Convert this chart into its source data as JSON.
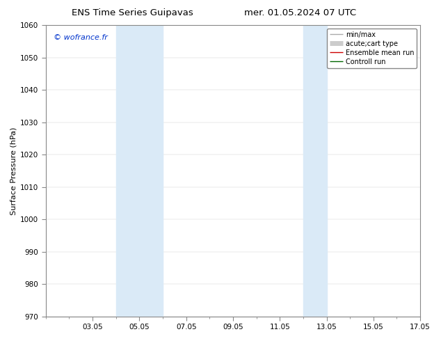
{
  "title_left": "ENS Time Series Guipavas",
  "title_right": "mer. 01.05.2024 07 UTC",
  "ylabel": "Surface Pressure (hPa)",
  "ylim": [
    970,
    1060
  ],
  "yticks": [
    970,
    980,
    990,
    1000,
    1010,
    1020,
    1030,
    1040,
    1050,
    1060
  ],
  "xlim": [
    0,
    16
  ],
  "xtick_labels": [
    "03.05",
    "05.05",
    "07.05",
    "09.05",
    "11.05",
    "13.05",
    "15.05",
    "17.05"
  ],
  "xtick_positions": [
    2,
    4,
    6,
    8,
    10,
    12,
    14,
    16
  ],
  "shaded_bands": [
    {
      "x_start": 3,
      "x_end": 5
    },
    {
      "x_start": 11,
      "x_end": 12
    }
  ],
  "shaded_color": "#daeaf7",
  "watermark_text": "© wofrance.fr",
  "watermark_color": "#0033cc",
  "legend_entries": [
    {
      "label": "min/max",
      "color": "#aaaaaa",
      "linestyle": "-",
      "linewidth": 1.0
    },
    {
      "label": "acute;cart type",
      "color": "#cccccc",
      "linestyle": "-",
      "linewidth": 5
    },
    {
      "label": "Ensemble mean run",
      "color": "#cc0000",
      "linestyle": "-",
      "linewidth": 1.0
    },
    {
      "label": "Controll run",
      "color": "#006600",
      "linestyle": "-",
      "linewidth": 1.0
    }
  ],
  "background_color": "#ffffff",
  "spine_color": "#888888",
  "tick_color": "#333333",
  "title_fontsize": 9.5,
  "ylabel_fontsize": 8,
  "tick_fontsize": 7.5,
  "watermark_fontsize": 8,
  "legend_fontsize": 7
}
